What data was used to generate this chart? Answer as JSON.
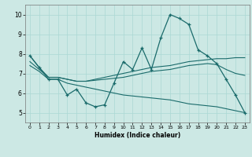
{
  "title": "",
  "xlabel": "Humidex (Indice chaleur)",
  "bg_color": "#cce8e4",
  "line_color": "#1a6b6b",
  "grid_color": "#aad8d4",
  "xlim": [
    -0.5,
    23.5
  ],
  "ylim": [
    4.5,
    10.5
  ],
  "xticks": [
    0,
    1,
    2,
    3,
    4,
    5,
    6,
    7,
    8,
    9,
    10,
    11,
    12,
    13,
    14,
    15,
    16,
    17,
    18,
    19,
    20,
    21,
    22,
    23
  ],
  "yticks": [
    5,
    6,
    7,
    8,
    9,
    10
  ],
  "curve1_x": [
    0,
    1,
    2,
    3,
    4,
    5,
    6,
    7,
    8,
    9,
    10,
    11,
    12,
    13,
    14,
    15,
    16,
    17,
    18,
    19,
    20,
    21,
    22,
    23
  ],
  "curve1_y": [
    7.9,
    7.3,
    6.7,
    6.7,
    5.9,
    6.2,
    5.5,
    5.3,
    5.4,
    6.5,
    7.6,
    7.2,
    8.3,
    7.2,
    8.8,
    10.0,
    9.8,
    9.5,
    8.2,
    7.9,
    7.5,
    6.7,
    5.9,
    5.0
  ],
  "curve2_x": [
    0,
    1,
    2,
    3,
    4,
    5,
    6,
    7,
    8,
    9,
    10,
    11,
    12,
    13,
    14,
    15,
    16,
    17,
    18,
    19,
    20,
    21,
    22,
    23
  ],
  "curve2_y": [
    7.9,
    7.3,
    6.8,
    6.8,
    6.7,
    6.6,
    6.6,
    6.7,
    6.8,
    6.9,
    7.0,
    7.1,
    7.2,
    7.3,
    7.35,
    7.4,
    7.5,
    7.6,
    7.65,
    7.7,
    7.75,
    7.75,
    7.8,
    7.8
  ],
  "curve3_x": [
    0,
    1,
    2,
    3,
    4,
    5,
    6,
    7,
    8,
    9,
    10,
    11,
    12,
    13,
    14,
    15,
    16,
    17,
    18,
    19,
    20,
    21,
    22,
    23
  ],
  "curve3_y": [
    7.6,
    7.2,
    6.8,
    6.8,
    6.7,
    6.6,
    6.6,
    6.65,
    6.7,
    6.75,
    6.8,
    6.9,
    7.0,
    7.1,
    7.15,
    7.2,
    7.3,
    7.4,
    7.45,
    7.5,
    7.45,
    7.2,
    7.0,
    6.9
  ],
  "curve4_x": [
    0,
    1,
    2,
    3,
    4,
    5,
    6,
    7,
    8,
    9,
    10,
    11,
    12,
    13,
    14,
    15,
    16,
    17,
    18,
    19,
    20,
    21,
    22,
    23
  ],
  "curve4_y": [
    7.4,
    7.1,
    6.7,
    6.7,
    6.5,
    6.4,
    6.3,
    6.2,
    6.1,
    6.0,
    5.9,
    5.85,
    5.8,
    5.75,
    5.7,
    5.65,
    5.55,
    5.45,
    5.4,
    5.35,
    5.3,
    5.2,
    5.1,
    5.0
  ]
}
